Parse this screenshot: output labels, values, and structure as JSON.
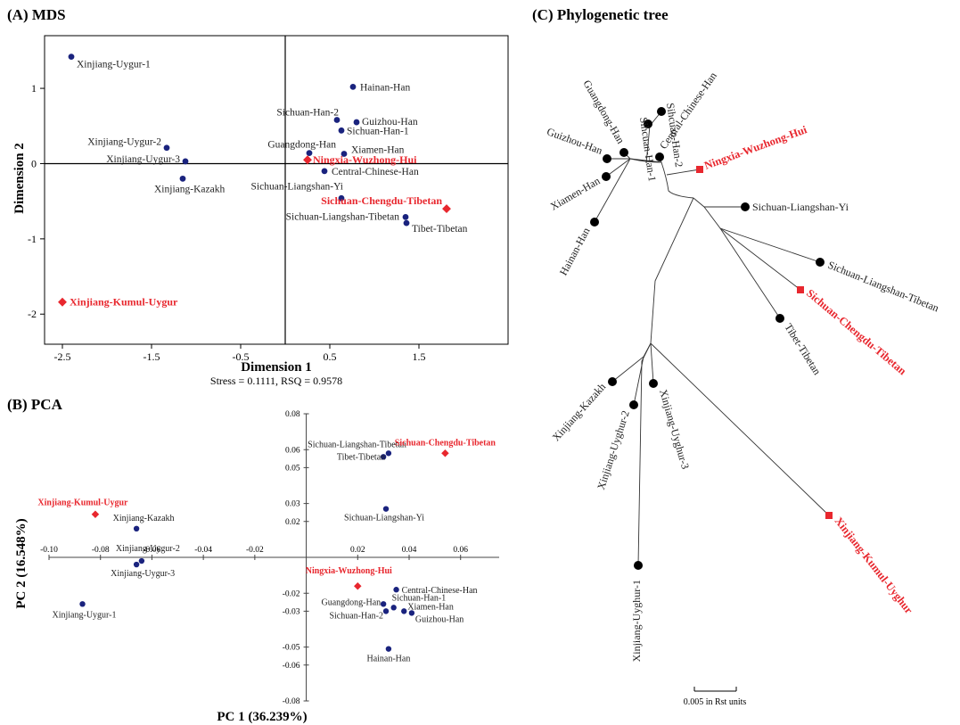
{
  "chart_data": [
    {
      "panel": "A",
      "type": "scatter",
      "title": "(A) MDS",
      "xlabel": "Dimension 1",
      "ylabel": "Dimension 2",
      "caption": "Stress = 0.1111, RSQ = 0.9578",
      "xlim": [
        -2.7,
        2.5
      ],
      "ylim": [
        -2.4,
        1.7
      ],
      "xticks": [
        -2.5,
        -1.5,
        -0.5,
        0.5,
        1.5
      ],
      "yticks": [
        -2,
        -1,
        0,
        1
      ],
      "highlight_color": "#e8272e",
      "point_color": "#1a237e",
      "points": [
        {
          "label": "Xinjiang-Uygur-1",
          "x": -2.4,
          "y": 1.42,
          "highlight": false,
          "anchor": "start",
          "dx": 6,
          "dy": 12
        },
        {
          "label": "Xinjiang-Uygur-2",
          "x": -1.33,
          "y": 0.21,
          "highlight": false,
          "anchor": "end",
          "dx": -6,
          "dy": -3
        },
        {
          "label": "Xinjiang-Uygur-3",
          "x": -1.12,
          "y": 0.03,
          "highlight": false,
          "anchor": "end",
          "dx": -6,
          "dy": 1
        },
        {
          "label": "Xinjiang-Kazakh",
          "x": -1.15,
          "y": -0.2,
          "highlight": false,
          "anchor": "start",
          "dx": -32,
          "dy": 15
        },
        {
          "label": "Xinjiang-Kumul-Uygur",
          "x": -2.5,
          "y": -1.84,
          "highlight": true,
          "anchor": "start",
          "dx": 8,
          "dy": 4
        },
        {
          "label": "Hainan-Han",
          "x": 0.76,
          "y": 1.02,
          "highlight": false,
          "anchor": "start",
          "dx": 8,
          "dy": 4
        },
        {
          "label": "Sichuan-Han-2",
          "x": 0.58,
          "y": 0.58,
          "highlight": false,
          "anchor": "end",
          "dx": 2,
          "dy": -5
        },
        {
          "label": "Guizhou-Han",
          "x": 0.8,
          "y": 0.55,
          "highlight": false,
          "anchor": "start",
          "dx": 6,
          "dy": 3
        },
        {
          "label": "Sichuan-Han-1",
          "x": 0.63,
          "y": 0.44,
          "highlight": false,
          "anchor": "start",
          "dx": 6,
          "dy": 4
        },
        {
          "label": "Guangdong-Han",
          "x": 0.27,
          "y": 0.14,
          "highlight": false,
          "anchor": "end",
          "dx": 30,
          "dy": -6
        },
        {
          "label": "Xiamen-Han",
          "x": 0.66,
          "y": 0.13,
          "highlight": false,
          "anchor": "start",
          "dx": 8,
          "dy": -1
        },
        {
          "label": "Ningxia-Wuzhong-Hui",
          "x": 0.25,
          "y": 0.05,
          "highlight": true,
          "anchor": "start",
          "dx": 6,
          "dy": 4
        },
        {
          "label": "Central-Chinese-Han",
          "x": 0.44,
          "y": -0.1,
          "highlight": false,
          "anchor": "start",
          "dx": 8,
          "dy": 4
        },
        {
          "label": "Sichuan-Liangshan-Yi",
          "x": 0.63,
          "y": -0.46,
          "highlight": false,
          "anchor": "end",
          "dx": 2,
          "dy": -10
        },
        {
          "label": "Sichuan-Chengdu-Tibetan",
          "x": 1.81,
          "y": -0.6,
          "highlight": true,
          "anchor": "end",
          "dx": -5,
          "dy": -5
        },
        {
          "label": "Sichuan-Liangshan-Tibetan",
          "x": 1.35,
          "y": -0.71,
          "highlight": false,
          "anchor": "end",
          "dx": -7,
          "dy": 3
        },
        {
          "label": "Tibet-Tibetan",
          "x": 1.36,
          "y": -0.79,
          "highlight": false,
          "anchor": "start",
          "dx": 6,
          "dy": 10
        }
      ]
    },
    {
      "panel": "B",
      "type": "scatter",
      "title": "(B) PCA",
      "xlabel": "PC 1 (36.239%)",
      "ylabel": "PC 2 (16.548%)",
      "xlim": [
        -0.1,
        0.075
      ],
      "ylim": [
        -0.08,
        0.08
      ],
      "xticks": [
        -0.1,
        -0.08,
        -0.06,
        -0.04,
        -0.02,
        0.02,
        0.04,
        0.06
      ],
      "xtick_labels": [
        "-0.10",
        "-0.08",
        "-0.06",
        "-0.04",
        "-0.02",
        "0.02",
        "0.04",
        "0.06"
      ],
      "yticks": [
        0.08,
        0.06,
        0.05,
        0.03,
        0.02,
        -0.02,
        -0.03,
        -0.05,
        -0.06,
        -0.08
      ],
      "ytick_labels": [
        "0.08",
        "0.06",
        "0.05",
        "0.03",
        "0.02",
        "-0.02",
        "-0.03",
        "-0.05",
        "-0.06",
        "-0.08"
      ],
      "points": [
        {
          "label": "Xinjiang-Kumul-Uygur",
          "x": -0.082,
          "y": 0.024,
          "highlight": true,
          "anchor": "middle",
          "dx": -14,
          "dy": -10
        },
        {
          "label": "Xinjiang-Kazakh",
          "x": -0.066,
          "y": 0.016,
          "highlight": false,
          "anchor": "middle",
          "dx": 8,
          "dy": -9
        },
        {
          "label": "Xinjiang-Uygur-2",
          "x": -0.064,
          "y": -0.002,
          "highlight": false,
          "anchor": "middle",
          "dx": 7,
          "dy": -11
        },
        {
          "label": "Xinjiang-Uygur-3",
          "x": -0.066,
          "y": -0.004,
          "highlight": false,
          "anchor": "middle",
          "dx": 7,
          "dy": 13
        },
        {
          "label": "Xinjiang-Uygur-1",
          "x": -0.087,
          "y": -0.026,
          "highlight": false,
          "anchor": "middle",
          "dx": 2,
          "dy": 15
        },
        {
          "label": "Sichuan-Liangshan-Tibetan",
          "x": 0.032,
          "y": 0.058,
          "highlight": false,
          "anchor": "end",
          "dx": 20,
          "dy": -7
        },
        {
          "label": "Tibet-Tibetan",
          "x": 0.03,
          "y": 0.056,
          "highlight": false,
          "anchor": "end",
          "dx": 2,
          "dy": 3
        },
        {
          "label": "Sichuan-Chengdu-Tibetan",
          "x": 0.054,
          "y": 0.058,
          "highlight": true,
          "anchor": "middle",
          "dx": 0,
          "dy": -9
        },
        {
          "label": "Sichuan-Liangshan-Yi",
          "x": 0.031,
          "y": 0.027,
          "highlight": false,
          "anchor": "middle",
          "dx": -2,
          "dy": 13
        },
        {
          "label": "Ningxia-Wuzhong-Hui",
          "x": 0.02,
          "y": -0.016,
          "highlight": true,
          "anchor": "middle",
          "dx": -10,
          "dy": -14
        },
        {
          "label": "Central-Chinese-Han",
          "x": 0.035,
          "y": -0.018,
          "highlight": false,
          "anchor": "start",
          "dx": 6,
          "dy": 4
        },
        {
          "label": "Guangdong-Han",
          "x": 0.03,
          "y": -0.026,
          "highlight": false,
          "anchor": "end",
          "dx": -3,
          "dy": 1
        },
        {
          "label": "Sichuan-Han-1",
          "x": 0.034,
          "y": -0.028,
          "highlight": false,
          "anchor": "start",
          "dx": -2,
          "dy": -8
        },
        {
          "label": "Xiamen-Han",
          "x": 0.038,
          "y": -0.03,
          "highlight": false,
          "anchor": "start",
          "dx": 4,
          "dy": -2
        },
        {
          "label": "Guizhou-Han",
          "x": 0.041,
          "y": -0.031,
          "highlight": false,
          "anchor": "start",
          "dx": 4,
          "dy": 10
        },
        {
          "label": "Sichuan-Han-2",
          "x": 0.031,
          "y": -0.03,
          "highlight": false,
          "anchor": "end",
          "dx": -3,
          "dy": 8
        },
        {
          "label": "Hainan-Han",
          "x": 0.032,
          "y": -0.051,
          "highlight": false,
          "anchor": "middle",
          "dx": 0,
          "dy": 14
        }
      ]
    },
    {
      "panel": "C",
      "type": "tree",
      "title": "(C) Phylogenetic tree",
      "scale_label": "0.005 in Rst units",
      "leaves": [
        {
          "label": "Sihcuan-Han-2",
          "highlight": false
        },
        {
          "label": "Sihcuan-Han-1",
          "highlight": false
        },
        {
          "label": "Central-Chinese-Han",
          "highlight": false
        },
        {
          "label": "Guangdong-Han",
          "highlight": false
        },
        {
          "label": "Guizhou-Han",
          "highlight": false
        },
        {
          "label": "Xiamen-Han",
          "highlight": false
        },
        {
          "label": "Hainan-Han",
          "highlight": false
        },
        {
          "label": "Ningxia-Wuzhong-Hui",
          "highlight": true
        },
        {
          "label": "Sichuan-Liangshan-Yi",
          "highlight": false
        },
        {
          "label": "Sichuan-Liangshan-Tibetan",
          "highlight": false
        },
        {
          "label": "Sichuan-Chengdu-Tibetan",
          "highlight": true
        },
        {
          "label": "Tibet-Tibetan",
          "highlight": false
        },
        {
          "label": "Xinjiang-Kazakh",
          "highlight": false
        },
        {
          "label": "Xinjiang-Uyghur-2",
          "highlight": false
        },
        {
          "label": "Xinjiang-Uyghur-3",
          "highlight": false
        },
        {
          "label": "Xinjiang-Uyghur-1",
          "highlight": false
        },
        {
          "label": "Xinjiang-Kumul-Uyghur",
          "highlight": true
        }
      ]
    }
  ]
}
